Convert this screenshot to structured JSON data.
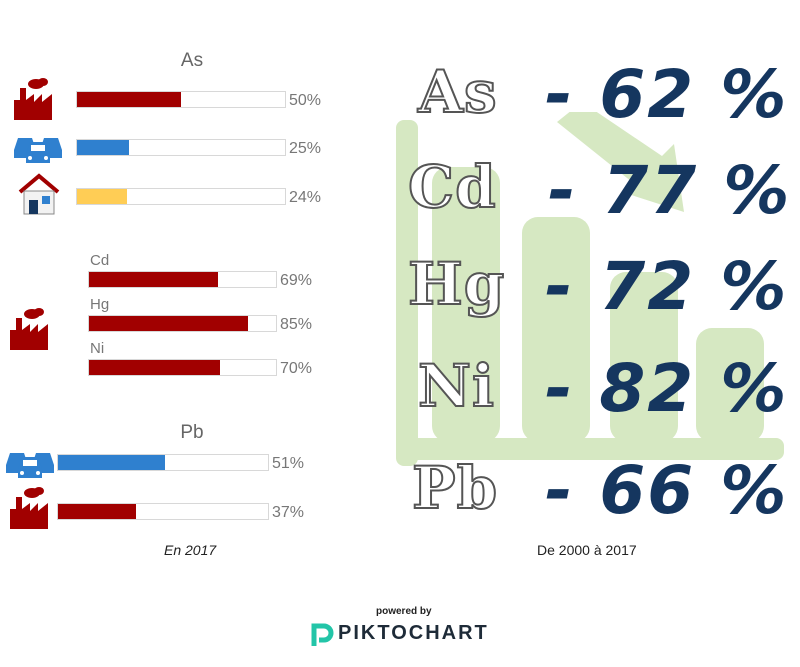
{
  "colors": {
    "industry": "#a10000",
    "transport": "#2f80cf",
    "residential": "#ffcd55",
    "reduction": "#15365f",
    "bg_chart": "#d6e8c2"
  },
  "left_panel": {
    "groups": [
      {
        "title": "As",
        "rows": [
          {
            "sector": "industry",
            "icon": "factory-icon",
            "value": 50,
            "label": "50%"
          },
          {
            "sector": "transport",
            "icon": "cars-icon",
            "value": 25,
            "label": "25%"
          },
          {
            "sector": "residential",
            "icon": "house-icon",
            "value": 24,
            "label": "24%"
          }
        ]
      },
      {
        "title": "",
        "icon": "factory-icon",
        "rows": [
          {
            "name": "Cd",
            "sector": "industry",
            "value": 69,
            "label": "69%"
          },
          {
            "name": "Hg",
            "sector": "industry",
            "value": 85,
            "label": "85%"
          },
          {
            "name": "Ni",
            "sector": "industry",
            "value": 70,
            "label": "70%"
          }
        ]
      },
      {
        "title": "Pb",
        "rows": [
          {
            "sector": "transport",
            "icon": "cars-icon",
            "value": 51,
            "label": "51%"
          },
          {
            "sector": "industry",
            "icon": "factory-icon",
            "value": 37,
            "label": "37%"
          }
        ]
      }
    ],
    "caption": "En 2017"
  },
  "right_panel": {
    "rows": [
      {
        "element": "As",
        "reduction": "- 62 %"
      },
      {
        "element": "Cd",
        "reduction": "- 77 %"
      },
      {
        "element": "Hg",
        "reduction": "- 72 %"
      },
      {
        "element": "Ni",
        "reduction": "- 82 %"
      },
      {
        "element": "Pb",
        "reduction": "- 66 %"
      }
    ],
    "caption": "De 2000 à 2017"
  },
  "footer": {
    "powered": "powered by",
    "brand": "PIKTOCHART"
  },
  "chart_data": [
    {
      "type": "bar",
      "title": "As",
      "categories": [
        "industry",
        "transport",
        "residential"
      ],
      "values": [
        50,
        25,
        24
      ],
      "ylim": [
        0,
        100
      ]
    },
    {
      "type": "bar",
      "categories": [
        "Cd",
        "Hg",
        "Ni"
      ],
      "values": [
        69,
        85,
        70
      ],
      "ylim": [
        0,
        100
      ]
    },
    {
      "type": "bar",
      "title": "Pb",
      "categories": [
        "transport",
        "industry"
      ],
      "values": [
        51,
        37
      ],
      "ylim": [
        0,
        100
      ]
    },
    {
      "type": "table",
      "categories": [
        "As",
        "Cd",
        "Hg",
        "Ni",
        "Pb"
      ],
      "values": [
        -62,
        -77,
        -72,
        -82,
        -66
      ]
    }
  ]
}
